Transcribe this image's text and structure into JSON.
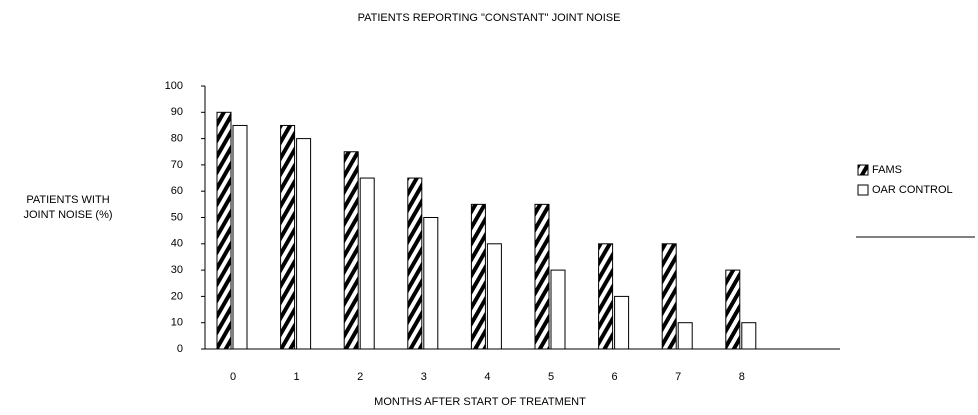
{
  "chart_data": {
    "type": "bar",
    "title": "PATIENTS REPORTING \"CONSTANT\" JOINT NOISE",
    "xlabel": "MONTHS AFTER START OF TREATMENT",
    "ylabel": [
      "PATIENTS WITH",
      "JOINT NOISE (%)"
    ],
    "categories": [
      "0",
      "1",
      "2",
      "3",
      "4",
      "5",
      "6",
      "7",
      "8"
    ],
    "series": [
      {
        "name": "FAMS",
        "color": "#000000",
        "values": [
          90,
          85,
          75,
          65,
          55,
          55,
          40,
          40,
          30
        ]
      },
      {
        "name": "OAR CONTROL",
        "color": "#ffffff",
        "values": [
          85,
          80,
          65,
          50,
          40,
          30,
          20,
          10,
          10
        ]
      }
    ],
    "ylim": [
      0,
      100
    ],
    "yticks": [
      0,
      10,
      20,
      30,
      40,
      50,
      60,
      70,
      80,
      90,
      100
    ],
    "legend": "right"
  }
}
